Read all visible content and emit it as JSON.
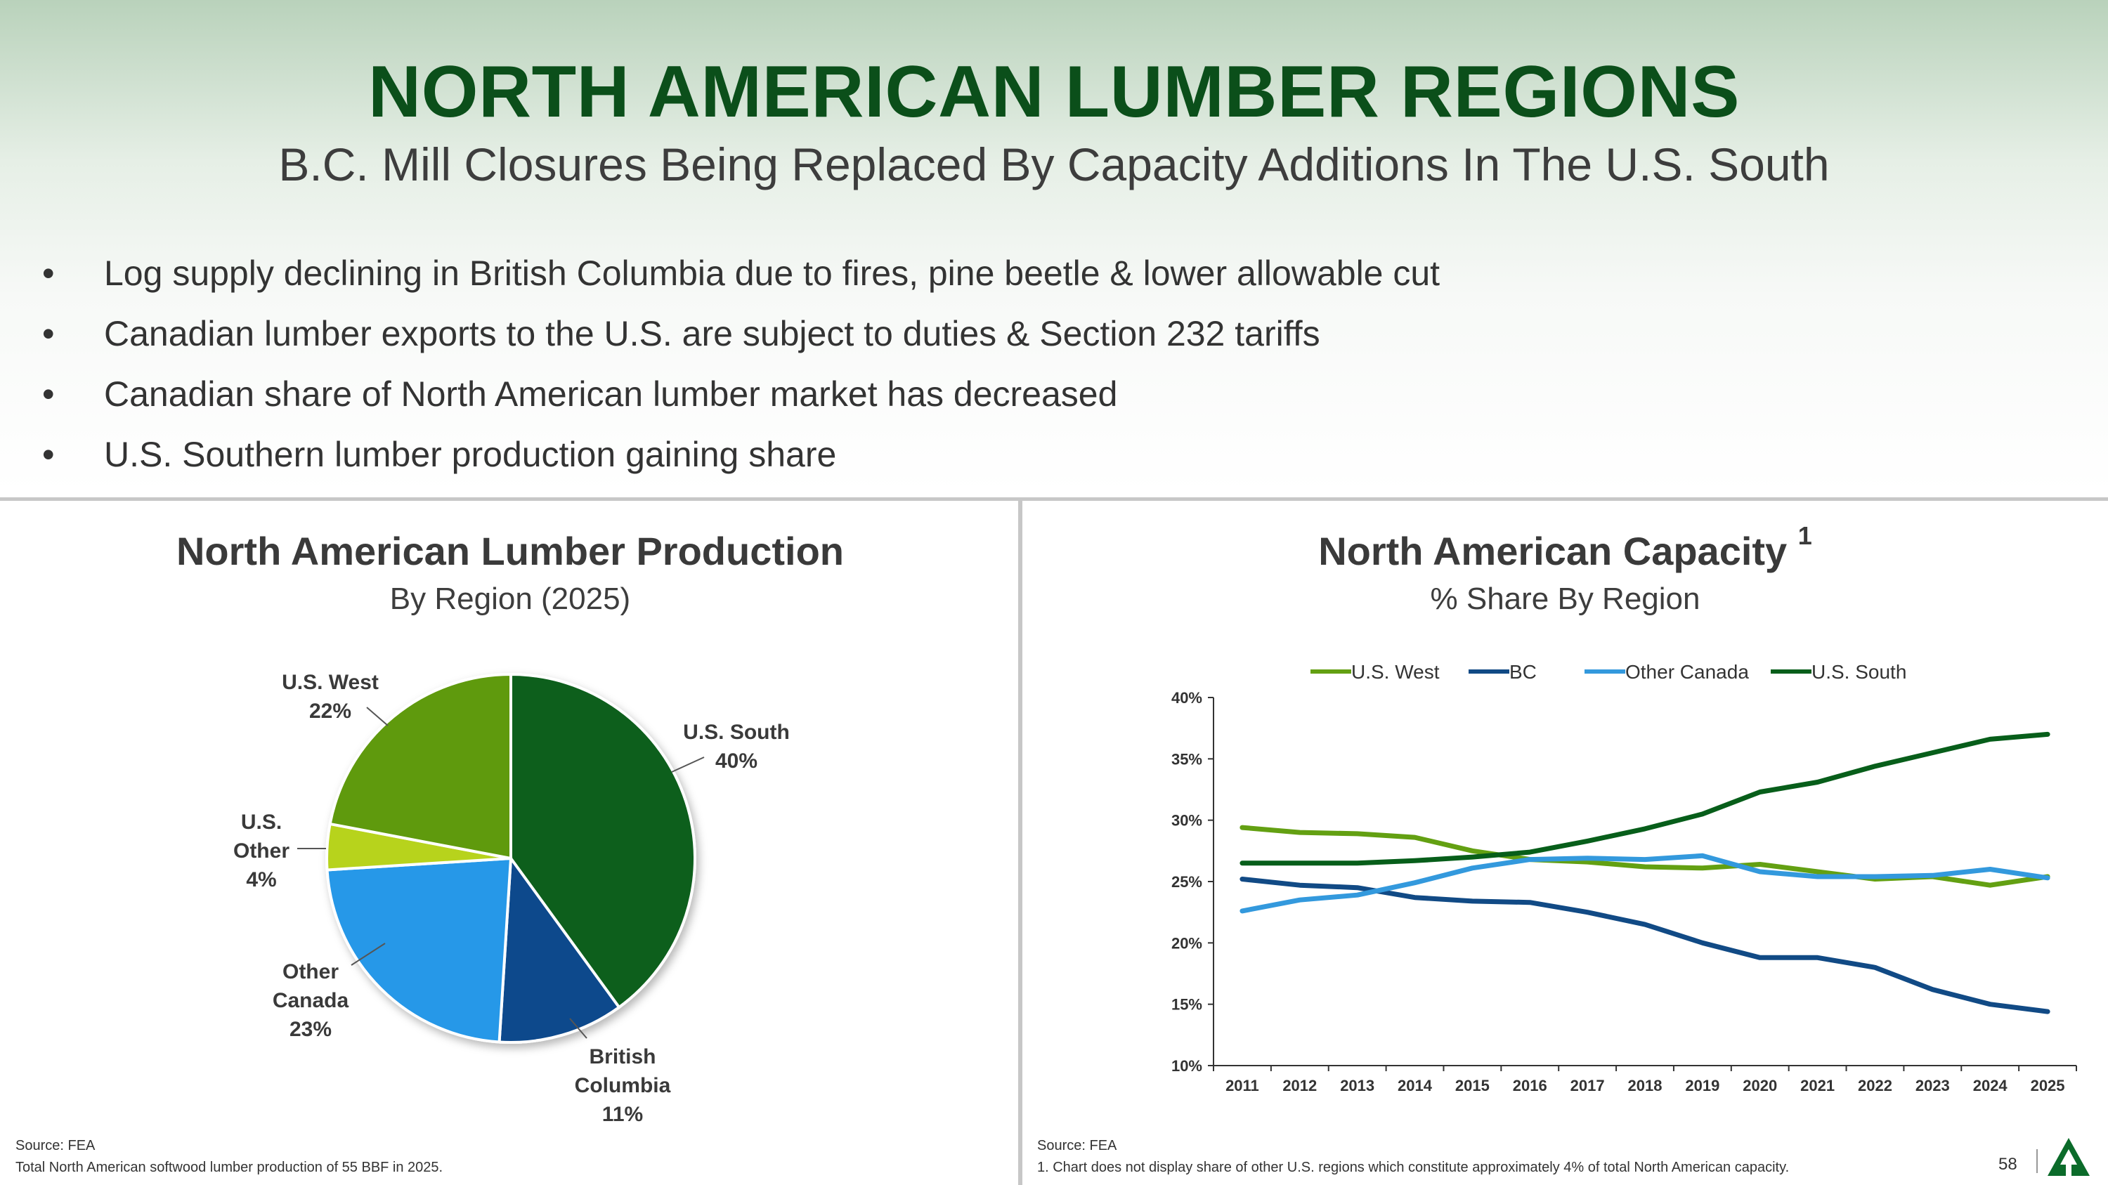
{
  "title": "NORTH AMERICAN LUMBER REGIONS",
  "subtitle": "B.C. Mill Closures Being Replaced By Capacity Additions In The U.S. South",
  "bullets": [
    "Log supply declining in British Columbia due to fires, pine beetle & lower allowable cut",
    "Canadian lumber exports to the U.S. are subject to duties & Section 232 tariffs",
    "Canadian share of North American lumber market has decreased",
    "U.S. Southern lumber production gaining share"
  ],
  "bullet_symbol": "•",
  "page_number": "58",
  "colors": {
    "title": "#0b4f1a",
    "us_south": "#075e1a",
    "bc": "#0f4a8c",
    "other_canada": "#2798e8",
    "us_other": "#b7d31f",
    "us_west": "#5f9a0e",
    "line_us_west": "#63a012",
    "line_bc": "#114a85",
    "line_other_canada": "#3399dd",
    "line_us_south": "#075e1a"
  },
  "chart_data": [
    {
      "type": "pie",
      "title": "North American Lumber Production",
      "subtitle": "By Region (2025)",
      "slices": [
        {
          "label_lines": [
            "U.S. South",
            "40%"
          ],
          "value": 40
        },
        {
          "label_lines": [
            "British",
            "Columbia",
            "11%"
          ],
          "value": 11
        },
        {
          "label_lines": [
            "Other",
            "Canada",
            "23%"
          ],
          "value": 23
        },
        {
          "label_lines": [
            "U.S.",
            "Other",
            "4%"
          ],
          "value": 4
        },
        {
          "label_lines": [
            "U.S. West",
            "22%"
          ],
          "value": 22
        }
      ],
      "source": "Source: FEA",
      "note": "Total North American softwood lumber production of 55 BBF in 2025."
    },
    {
      "type": "line",
      "title": "North American Capacity",
      "title_superscript": "1",
      "subtitle": "% Share By Region",
      "x": [
        "2011",
        "2012",
        "2013",
        "2014",
        "2015",
        "2016",
        "2017",
        "2018",
        "2019",
        "2020",
        "2021",
        "2022",
        "2023",
        "2024",
        "2025"
      ],
      "y_ticks": [
        "10%",
        "15%",
        "20%",
        "25%",
        "30%",
        "35%",
        "40%"
      ],
      "ylim": [
        10,
        40
      ],
      "legend_position": "top",
      "series": [
        {
          "name": "U.S. West",
          "values": [
            29.4,
            29.0,
            28.9,
            28.6,
            27.5,
            26.8,
            26.6,
            26.2,
            26.1,
            26.4,
            25.8,
            25.2,
            25.4,
            24.7,
            25.4
          ]
        },
        {
          "name": "BC",
          "values": [
            25.2,
            24.7,
            24.5,
            23.7,
            23.4,
            23.3,
            22.5,
            21.5,
            20.0,
            18.8,
            18.8,
            18.0,
            16.2,
            15.0,
            14.4
          ]
        },
        {
          "name": "Other Canada",
          "values": [
            22.6,
            23.5,
            23.9,
            24.9,
            26.1,
            26.8,
            26.9,
            26.8,
            27.1,
            25.8,
            25.4,
            25.4,
            25.5,
            26.0,
            25.3
          ]
        },
        {
          "name": "U.S. South",
          "values": [
            26.5,
            26.5,
            26.5,
            26.7,
            27.0,
            27.4,
            28.3,
            29.3,
            30.5,
            32.3,
            33.1,
            34.4,
            35.5,
            36.6,
            37.0
          ]
        }
      ],
      "source": "Source: FEA",
      "note": "1. Chart does not display share of other U.S. regions which constitute approximately 4% of total North American capacity."
    }
  ]
}
